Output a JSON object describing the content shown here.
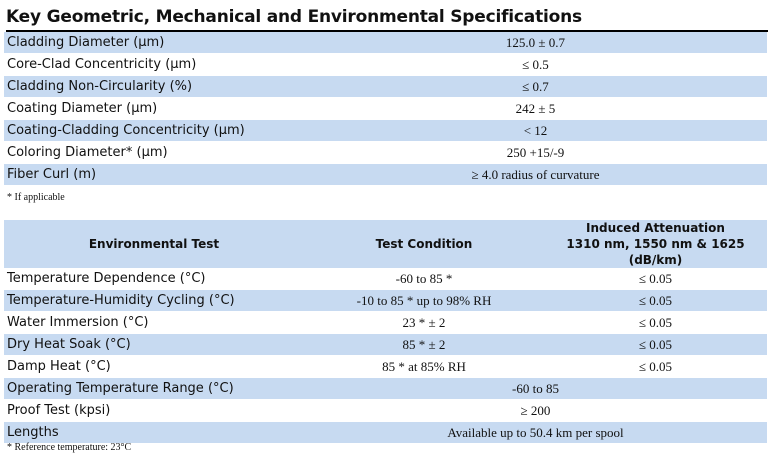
{
  "title": "Key Geometric, Mechanical and Environmental Specifications",
  "specs": [
    {
      "label": "Cladding Diameter (µm)",
      "value": "125.0 ± 0.7"
    },
    {
      "label": "Core-Clad Concentricity (µm)",
      "value": "≤ 0.5"
    },
    {
      "label": "Cladding Non-Circularity (%)",
      "value": "≤ 0.7"
    },
    {
      "label": "Coating Diameter (µm)",
      "value": "242 ± 5"
    },
    {
      "label": "Coating-Cladding Concentricity (µm)",
      "value": "< 12"
    },
    {
      "label": "Coloring Diameter* (µm)",
      "value": "250  +15/-9"
    },
    {
      "label": "Fiber Curl (m)",
      "value": "≥ 4.0 radius of curvature"
    }
  ],
  "spec_note": "* If applicable",
  "env_header": {
    "test": "Environmental Test",
    "condition": "Test Condition",
    "attenuation_line1": "Induced Attenuation",
    "attenuation_line2": "1310 nm, 1550 nm & 1625 (dB/km)"
  },
  "env_rows": [
    {
      "test": "Temperature Dependence  (°C)",
      "condition": "-60 to 85 *",
      "attenuation": "≤ 0.05"
    },
    {
      "test": "Temperature-Humidity Cycling  (°C)",
      "condition": "-10 to 85 * up to 98% RH",
      "attenuation": "≤ 0.05"
    },
    {
      "test": "Water Immersion  (°C)",
      "condition": "23 * ± 2",
      "attenuation": "≤ 0.05"
    },
    {
      "test": "Dry Heat Soak  (°C)",
      "condition": "85 * ± 2",
      "attenuation": "≤ 0.05"
    },
    {
      "test": "Damp Heat  (°C)",
      "condition": "85 * at 85% RH",
      "attenuation": "≤ 0.05"
    }
  ],
  "extra_rows": [
    {
      "label": "Operating Temperature Range (°C)",
      "value": "-60 to 85"
    },
    {
      "label": "Proof Test (kpsi)",
      "value": "≥ 200"
    },
    {
      "label": "Lengths",
      "value": "Available up to 50.4 km per spool"
    }
  ],
  "env_note": "* Reference temperature:  23°C"
}
